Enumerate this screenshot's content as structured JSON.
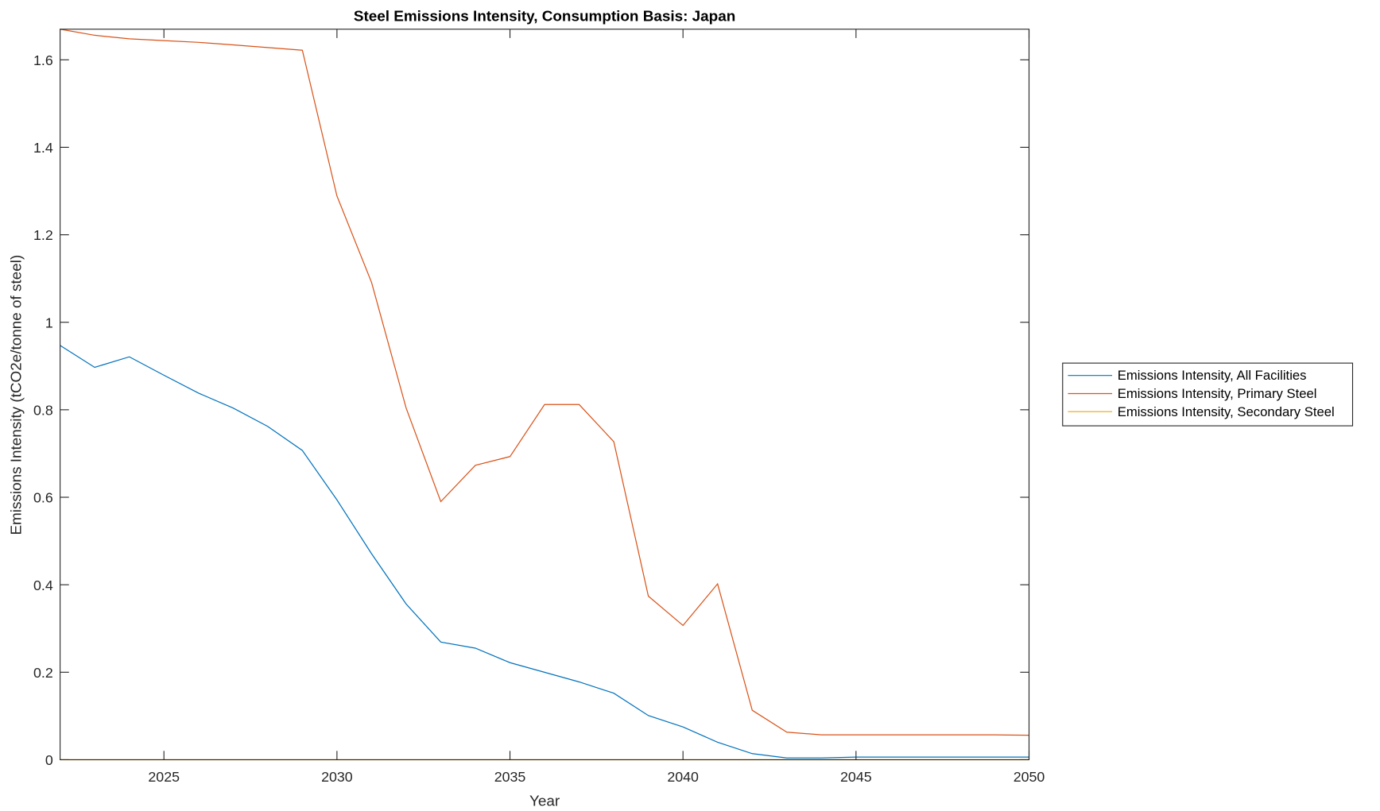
{
  "chart_data": {
    "type": "line",
    "title": "Steel Emissions Intensity, Consumption Basis: Japan",
    "xlabel": "Year",
    "ylabel": "Emissions Intensity (tCO2e/tonne of steel)",
    "xlim": [
      2022,
      2050
    ],
    "ylim": [
      0,
      1.67
    ],
    "xticks": [
      "2025",
      "2030",
      "2035",
      "2040",
      "2045",
      "2050"
    ],
    "yticks": [
      "0",
      "0.2",
      "0.4",
      "0.6",
      "0.8",
      "1",
      "1.2",
      "1.4",
      "1.6"
    ],
    "grid": false,
    "legend_position": "outside-right",
    "x": [
      2022,
      2023,
      2024,
      2025,
      2026,
      2027,
      2028,
      2029,
      2030,
      2031,
      2032,
      2033,
      2034,
      2035,
      2036,
      2037,
      2038,
      2039,
      2040,
      2041,
      2042,
      2043,
      2044,
      2045,
      2046,
      2047,
      2048,
      2049,
      2050
    ],
    "series": [
      {
        "name": "Emissions Intensity, All Facilities",
        "color": "#0072BD",
        "values": [
          0.947,
          0.897,
          0.921,
          0.879,
          0.838,
          0.804,
          0.762,
          0.707,
          0.594,
          0.471,
          0.356,
          0.269,
          0.255,
          0.222,
          0.2,
          0.178,
          0.152,
          0.101,
          0.075,
          0.04,
          0.014,
          0.004,
          0.004,
          0.006,
          0.006,
          0.006,
          0.006,
          0.006,
          0.006
        ]
      },
      {
        "name": "Emissions Intensity, Primary Steel",
        "color": "#D95319",
        "values": [
          1.67,
          1.656,
          1.648,
          1.644,
          1.64,
          1.634,
          1.628,
          1.622,
          1.289,
          1.091,
          0.804,
          0.59,
          0.673,
          0.693,
          0.812,
          0.812,
          0.727,
          0.374,
          0.307,
          0.402,
          0.113,
          0.063,
          0.057,
          0.057,
          0.057,
          0.057,
          0.057,
          0.057,
          0.056
        ]
      },
      {
        "name": "Emissions Intensity, Secondary Steel",
        "color": "#EDB120",
        "values": [
          0,
          0,
          0,
          0,
          0,
          0,
          0,
          0,
          0,
          0,
          0,
          0,
          0,
          0,
          0,
          0,
          0,
          0,
          0,
          0,
          0,
          0,
          0,
          0,
          0,
          0,
          0,
          0,
          0
        ]
      }
    ]
  }
}
